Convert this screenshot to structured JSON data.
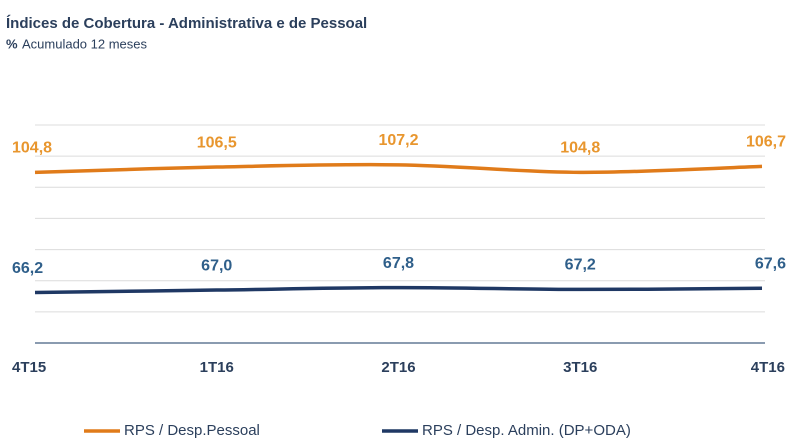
{
  "chart_data": {
    "type": "line",
    "title": "Índices de Cobertura - Administrativa  e de Pessoal",
    "unit": "%",
    "subtitle": "Acumulado 12 meses",
    "categories": [
      "4T15",
      "1T16",
      "2T16",
      "3T16",
      "4T16"
    ],
    "series": [
      {
        "name": "RPS / Desp.Pessoal",
        "color": "#e07b1a",
        "values": [
          104.8,
          106.5,
          107.2,
          104.8,
          106.7
        ],
        "value_labels": [
          "104,8",
          "106,5",
          "107,2",
          "104,8",
          "106,7"
        ]
      },
      {
        "name": "RPS / Desp. Admin. (DP+ODA)",
        "color": "#1f3864",
        "values": [
          66.2,
          67.0,
          67.8,
          67.2,
          67.6
        ],
        "value_labels": [
          "66,2",
          "67,0",
          "67,8",
          "67,2",
          "67,6"
        ]
      }
    ],
    "ylim": [
      50,
      120
    ],
    "yticks": [
      50,
      60,
      70,
      80,
      90,
      100,
      110,
      120
    ],
    "grid": true
  }
}
